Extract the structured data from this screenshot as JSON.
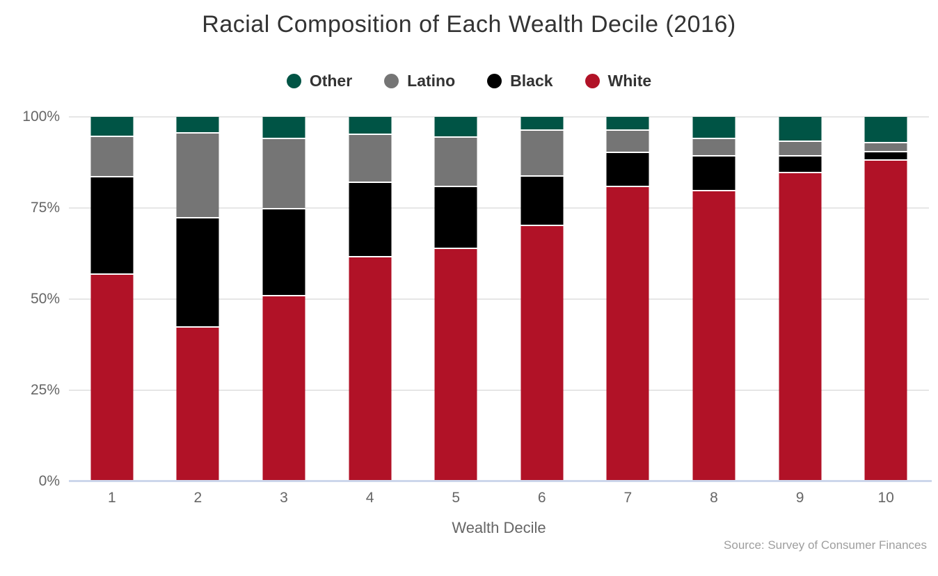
{
  "chart_data": {
    "type": "bar",
    "stacked": true,
    "title": "Racial Composition of Each Wealth Decile (2016)",
    "xlabel": "Wealth Decile",
    "ylabel": "",
    "source": "Source: Survey of Consumer Finances",
    "categories": [
      "1",
      "2",
      "3",
      "4",
      "5",
      "6",
      "7",
      "8",
      "9",
      "10"
    ],
    "y_ticks": [
      "0%",
      "25%",
      "50%",
      "75%",
      "100%"
    ],
    "ylim": [
      0,
      100
    ],
    "grid": true,
    "legend_position": "top",
    "legend_order": [
      "Other",
      "Latino",
      "Black",
      "White"
    ],
    "series": [
      {
        "name": "White",
        "color": "#b11227",
        "values": [
          56.7,
          42.2,
          50.8,
          61.5,
          63.7,
          70.1,
          80.8,
          79.6,
          84.5,
          88.0
        ]
      },
      {
        "name": "Black",
        "color": "#000000",
        "values": [
          26.7,
          30.0,
          23.9,
          20.3,
          17.1,
          13.5,
          9.3,
          9.5,
          4.6,
          2.2
        ]
      },
      {
        "name": "Latino",
        "color": "#757575",
        "values": [
          11.1,
          23.2,
          19.2,
          13.3,
          13.4,
          12.5,
          6.0,
          4.8,
          4.0,
          2.5
        ]
      },
      {
        "name": "Other",
        "color": "#005445",
        "values": [
          5.5,
          4.6,
          6.1,
          4.9,
          5.8,
          3.9,
          3.9,
          6.1,
          6.9,
          7.3
        ]
      }
    ],
    "colors": {
      "white_series": "#b11227",
      "black_series": "#000000",
      "latino_series": "#757575",
      "other_series": "#005445",
      "grid_line": "#e6e6e6",
      "axis_line": "#ccd6eb",
      "title_text": "#333333",
      "axis_text": "#666666",
      "source_text": "#9e9e9e"
    }
  }
}
